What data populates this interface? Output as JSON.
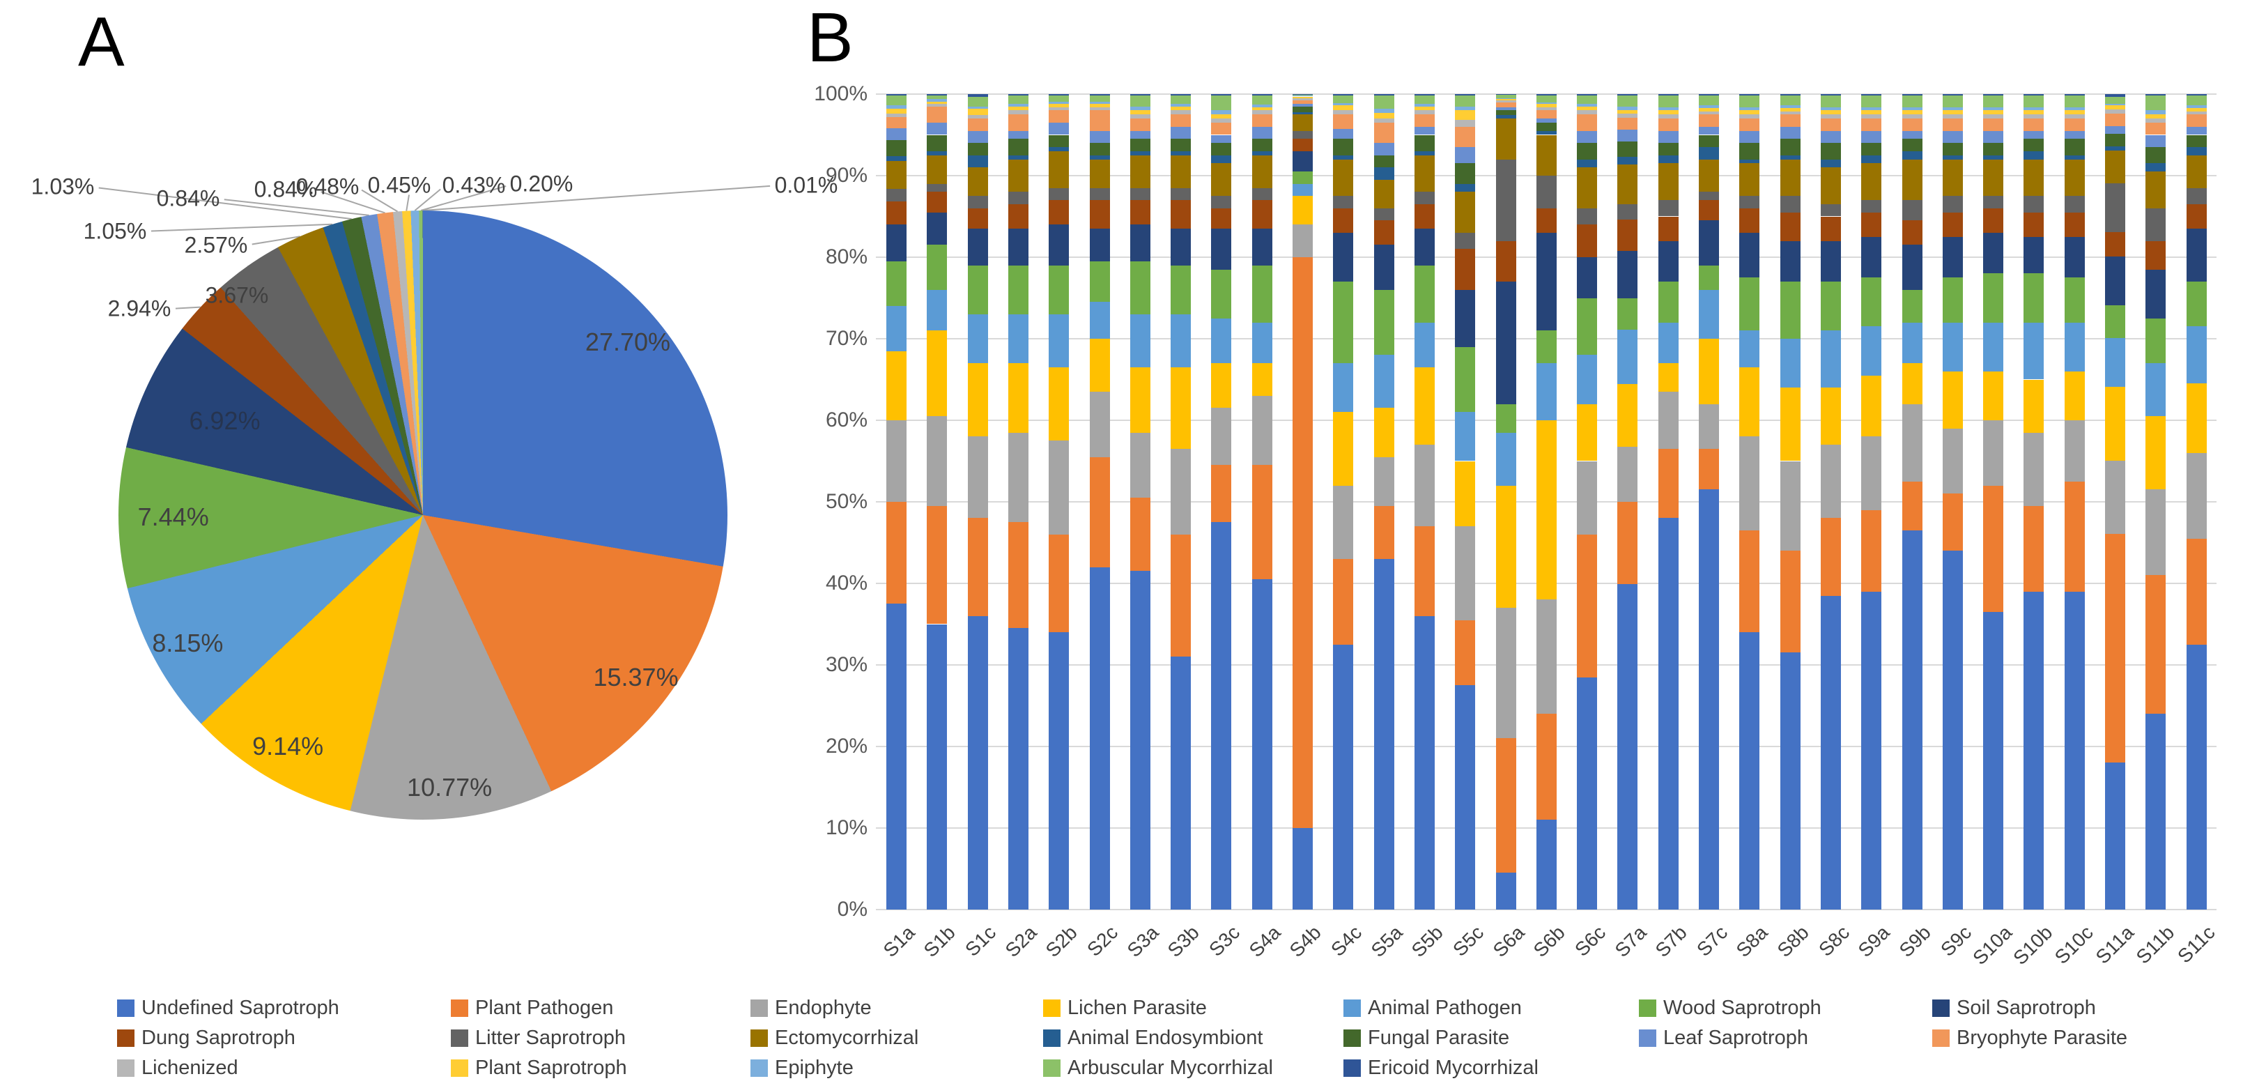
{
  "figure": {
    "panel_a_label": "A",
    "panel_b_label": "B"
  },
  "palette": {
    "label_text": "#404040",
    "axis_text": "#595959",
    "gridline": "#d9d9d9",
    "leader_line": "#a6a6a6"
  },
  "legend": {
    "entries": [
      "Undefined Saprotroph",
      "Plant Pathogen",
      "Endophyte",
      "Lichen Parasite",
      "Animal Pathogen",
      "Wood Saprotroph",
      "Soil Saprotroph",
      "Dung Saprotroph",
      "Litter Saprotroph",
      "Ectomycorrhizal",
      "Animal Endosymbiont",
      "Fungal Parasite",
      "Leaf Saprotroph",
      "Bryophyte Parasite",
      "Lichenized",
      "Plant Saprotroph",
      "Epiphyte",
      "Arbuscular Mycorrhizal",
      "Ericoid Mycorrhizal"
    ]
  },
  "chart_data": [
    {
      "type": "pie",
      "panel": "A",
      "legend_position": "shared-bottom",
      "slices": [
        {
          "name": "Undefined Saprotroph",
          "value": 27.7,
          "label": "27.70%",
          "color": "#4472C4",
          "label_placement": "inside"
        },
        {
          "name": "Plant Pathogen",
          "value": 15.37,
          "label": "15.37%",
          "color": "#ED7D31",
          "label_placement": "inside"
        },
        {
          "name": "Endophyte",
          "value": 10.77,
          "label": "10.77%",
          "color": "#A5A5A5",
          "label_placement": "inside"
        },
        {
          "name": "Lichen Parasite",
          "value": 9.14,
          "label": "9.14%",
          "color": "#FFC000",
          "label_placement": "inside"
        },
        {
          "name": "Animal Pathogen",
          "value": 8.15,
          "label": "8.15%",
          "color": "#5B9BD5",
          "label_placement": "inside"
        },
        {
          "name": "Wood Saprotroph",
          "value": 7.44,
          "label": "7.44%",
          "color": "#70AD47",
          "label_placement": "inside"
        },
        {
          "name": "Soil Saprotroph",
          "value": 6.92,
          "label": "6.92%",
          "color": "#264478",
          "label_placement": "inside-dim"
        },
        {
          "name": "Dung Saprotroph",
          "value": 2.94,
          "label": "2.94%",
          "color": "#9E480E",
          "label_placement": "outside",
          "label_xy": [
            200,
            443
          ]
        },
        {
          "name": "Litter Saprotroph",
          "value": 3.67,
          "label": "3.67%",
          "color": "#636363",
          "label_placement": "outside",
          "label_xy": [
            340,
            424
          ]
        },
        {
          "name": "Ectomycorrhizal",
          "value": 2.57,
          "label": "2.57%",
          "color": "#997300",
          "label_placement": "outside",
          "label_xy": [
            310,
            352
          ]
        },
        {
          "name": "Animal Endosymbiont",
          "value": 1.05,
          "label": "1.05%",
          "color": "#255E91",
          "label_placement": "outside",
          "label_xy": [
            165,
            332
          ]
        },
        {
          "name": "Fungal Parasite",
          "value": 1.03,
          "label": "1.03%",
          "color": "#43682B",
          "label_placement": "outside",
          "label_xy": [
            90,
            268
          ]
        },
        {
          "name": "Leaf Saprotroph",
          "value": 0.84,
          "label": "0.84%",
          "color": "#698ED0",
          "label_placement": "outside",
          "label_xy": [
            270,
            285
          ]
        },
        {
          "name": "Bryophyte Parasite",
          "value": 0.84,
          "label": "0.84%",
          "color": "#F1975A",
          "label_placement": "outside",
          "label_xy": [
            410,
            272
          ]
        },
        {
          "name": "Lichenized",
          "value": 0.48,
          "label": "0.48%",
          "color": "#B7B7B7",
          "label_placement": "outside",
          "label_xy": [
            470,
            268
          ]
        },
        {
          "name": "Plant Saprotroph",
          "value": 0.45,
          "label": "0.45%",
          "color": "#FFCD33",
          "label_placement": "outside",
          "label_xy": [
            573,
            266
          ]
        },
        {
          "name": "Epiphyte",
          "value": 0.43,
          "label": "0.43%",
          "color": "#7CAFDD",
          "label_placement": "outside",
          "label_xy": [
            680,
            266
          ]
        },
        {
          "name": "Arbuscular Mycorrhizal",
          "value": 0.2,
          "label": "0.20%",
          "color": "#8CC168",
          "label_placement": "outside",
          "label_xy": [
            777,
            264
          ]
        },
        {
          "name": "Ericoid Mycorrhizal",
          "value": 0.01,
          "label": "0.01%",
          "color": "#2F5597",
          "label_placement": "outside",
          "label_xy": [
            1157,
            266
          ]
        }
      ]
    },
    {
      "type": "bar",
      "panel": "B",
      "stacked": true,
      "units": "percent",
      "ylim": [
        0,
        100
      ],
      "grid": true,
      "y_ticks": [
        "0%",
        "10%",
        "20%",
        "30%",
        "40%",
        "50%",
        "60%",
        "70%",
        "80%",
        "90%",
        "100%"
      ],
      "categories": [
        "S1a",
        "S1b",
        "S1c",
        "S2a",
        "S2b",
        "S2c",
        "S3a",
        "S3b",
        "S3c",
        "S4a",
        "S4b",
        "S4c",
        "S5a",
        "S5b",
        "S5c",
        "S6a",
        "S6b",
        "S6c",
        "S7a",
        "S7b",
        "S7c",
        "S8a",
        "S8b",
        "S8c",
        "S9a",
        "S9b",
        "S9c",
        "S10a",
        "S10b",
        "S10c",
        "S11a",
        "S11b",
        "S11c"
      ],
      "series": [
        {
          "name": "Undefined Saprotroph",
          "color": "#4472C4"
        },
        {
          "name": "Plant Pathogen",
          "color": "#ED7D31"
        },
        {
          "name": "Endophyte",
          "color": "#A5A5A5"
        },
        {
          "name": "Lichen Parasite",
          "color": "#FFC000"
        },
        {
          "name": "Animal Pathogen",
          "color": "#5B9BD5"
        },
        {
          "name": "Wood Saprotroph",
          "color": "#70AD47"
        },
        {
          "name": "Soil Saprotroph",
          "color": "#264478"
        },
        {
          "name": "Dung Saprotroph",
          "color": "#9E480E"
        },
        {
          "name": "Litter Saprotroph",
          "color": "#636363"
        },
        {
          "name": "Ectomycorrhizal",
          "color": "#997300"
        },
        {
          "name": "Animal Endosymbiont",
          "color": "#255E91"
        },
        {
          "name": "Fungal Parasite",
          "color": "#43682B"
        },
        {
          "name": "Leaf Saprotroph",
          "color": "#698ED0"
        },
        {
          "name": "Bryophyte Parasite",
          "color": "#F1975A"
        },
        {
          "name": "Lichenized",
          "color": "#B7B7B7"
        },
        {
          "name": "Plant Saprotroph",
          "color": "#FFCD33"
        },
        {
          "name": "Epiphyte",
          "color": "#7CAFDD"
        },
        {
          "name": "Arbuscular Mycorrhizal",
          "color": "#8CC168"
        },
        {
          "name": "Ericoid Mycorrhizal",
          "color": "#2F5597"
        }
      ],
      "values_by_category": [
        [
          37.5,
          12.5,
          10,
          8.5,
          5.5,
          5.5,
          4.5,
          2.8,
          1.6,
          3.4,
          0.6,
          2.0,
          1.4,
          1.4,
          0.4,
          0.6,
          0.4,
          1.2,
          0.2
        ],
        [
          35,
          14.5,
          11,
          10.5,
          5,
          5.5,
          4,
          2.5,
          1,
          3.5,
          0.5,
          2,
          1.5,
          2,
          0.3,
          0.3,
          0.3,
          0.4,
          0.2
        ],
        [
          36,
          12,
          10,
          9,
          6,
          6,
          4.5,
          2.5,
          1.5,
          3.5,
          1.5,
          1.5,
          1.5,
          1.5,
          0.4,
          0.8,
          0.3,
          1.2,
          0.3
        ],
        [
          34.5,
          13,
          11,
          8.5,
          6,
          6,
          4.5,
          3,
          1.5,
          4,
          0.5,
          2,
          1,
          2,
          0.5,
          0.5,
          0.3,
          1,
          0.2
        ],
        [
          34,
          12,
          11.5,
          9,
          6.5,
          6,
          5,
          3,
          1.5,
          4.5,
          0.5,
          1.5,
          1.5,
          1.5,
          0.4,
          0.4,
          0.3,
          0.7,
          0.2
        ],
        [
          42,
          13.5,
          8,
          6.5,
          4.5,
          5,
          4,
          3.5,
          1.5,
          3.5,
          0.5,
          1.5,
          1.5,
          2.5,
          0.4,
          0.4,
          0.3,
          0.7,
          0.2
        ],
        [
          41.5,
          9,
          8,
          8,
          6.5,
          6.5,
          4.5,
          3,
          1.5,
          4,
          0.5,
          1.5,
          1,
          1.5,
          0.5,
          0.5,
          0.5,
          1.3,
          0.2
        ],
        [
          31,
          15,
          10.5,
          10,
          6.5,
          6,
          4.5,
          3.5,
          1.5,
          4,
          0.5,
          1.5,
          1.5,
          1.5,
          0.5,
          0.5,
          0.3,
          1,
          0.2
        ],
        [
          47.5,
          7,
          7,
          5.5,
          5.5,
          6,
          5,
          2.5,
          1.5,
          4,
          1,
          1.5,
          1,
          1.5,
          0.5,
          0.5,
          0.5,
          1.8,
          0.2
        ],
        [
          40.5,
          14,
          8.5,
          4,
          5,
          7,
          4.5,
          3.5,
          1.5,
          4,
          0.5,
          1.5,
          1.5,
          1.5,
          0.5,
          0.4,
          0.3,
          1.1,
          0.2
        ],
        [
          10,
          70,
          4,
          3.5,
          1.5,
          1.5,
          2.5,
          1.5,
          1,
          2,
          0.3,
          0.7,
          0.3,
          0.4,
          0.3,
          0.2,
          0.1,
          0.1,
          0.1
        ],
        [
          32.5,
          10.5,
          9,
          9,
          6,
          10,
          6,
          3,
          1.5,
          4.5,
          0.5,
          2,
          1.2,
          1.8,
          0.5,
          0.6,
          0.3,
          0.9,
          0.2
        ],
        [
          43,
          6.5,
          6,
          6,
          6.5,
          8,
          5.5,
          3,
          1.5,
          3.5,
          1.5,
          1.5,
          1.5,
          2.5,
          0.5,
          0.7,
          0.5,
          1.6,
          0.2
        ],
        [
          36,
          11,
          10,
          9.5,
          5.5,
          7,
          4.5,
          3,
          1.5,
          4.5,
          0.5,
          2,
          1,
          1.5,
          0.5,
          0.5,
          0.3,
          1,
          0.2
        ],
        [
          27.5,
          8,
          11.5,
          8,
          6,
          8,
          7,
          5,
          2,
          5,
          1,
          2.5,
          2,
          2.5,
          0.8,
          1.2,
          0.5,
          1.3,
          0.2
        ],
        [
          4.5,
          16.5,
          16,
          15,
          6.5,
          3.5,
          15,
          5,
          10,
          5,
          0.4,
          0.6,
          0.4,
          0.6,
          0.2,
          0.2,
          0.1,
          0.4,
          0.1
        ],
        [
          11,
          13,
          14,
          22,
          7,
          4,
          12,
          3,
          4,
          5,
          0.5,
          1,
          0.5,
          1,
          0.4,
          0.4,
          0.2,
          0.8,
          0.2
        ],
        [
          28.5,
          17.5,
          9,
          7,
          6,
          7,
          5,
          4,
          2,
          5,
          1,
          2,
          1.5,
          2,
          0.5,
          0.5,
          0.3,
          1,
          0.2
        ],
        [
          41.5,
          10.5,
          7,
          8,
          7,
          4,
          6,
          4,
          2,
          5,
          1,
          2,
          1.5,
          1.5,
          0.5,
          0.5,
          0.4,
          1.4,
          0.2
        ],
        [
          48,
          8.5,
          7,
          3.5,
          5,
          5,
          5,
          3,
          2,
          4.5,
          1,
          1.5,
          1.5,
          1.5,
          0.5,
          0.5,
          0.4,
          1.4,
          0.2
        ],
        [
          51.5,
          5,
          5.5,
          8,
          6,
          3,
          5.5,
          2.5,
          1,
          4,
          1.5,
          1.5,
          1,
          1.5,
          0.4,
          0.4,
          0.3,
          1.2,
          0.2
        ],
        [
          34,
          12.5,
          11.5,
          8.5,
          4.5,
          6.5,
          5.5,
          3,
          1.5,
          4,
          0.5,
          2,
          1.5,
          1.5,
          0.5,
          0.5,
          0.4,
          1.4,
          0.2
        ],
        [
          31.5,
          12.5,
          11,
          9,
          6,
          7,
          5,
          3.5,
          2,
          4.5,
          0.5,
          2,
          1.5,
          1.5,
          0.4,
          0.4,
          0.3,
          1.2,
          0.2
        ],
        [
          38.5,
          9.5,
          9,
          7,
          7,
          6,
          5,
          3,
          1.5,
          4.5,
          1,
          2,
          1.5,
          1.5,
          0.5,
          0.5,
          0.4,
          1.4,
          0.2
        ],
        [
          39,
          10,
          9,
          7.5,
          6,
          6,
          5,
          3,
          1.5,
          4.5,
          1,
          1.5,
          1.5,
          1.5,
          0.5,
          0.5,
          0.4,
          1.4,
          0.2
        ],
        [
          46.5,
          6,
          9.5,
          5,
          5,
          4,
          5.5,
          3,
          2.5,
          5,
          1,
          1.5,
          1,
          1.5,
          0.5,
          0.5,
          0.4,
          1.4,
          0.2
        ],
        [
          44,
          7,
          8,
          7,
          6,
          5.5,
          5,
          3,
          2,
          4.5,
          0.5,
          1.5,
          1.5,
          1.5,
          0.5,
          0.5,
          0.4,
          1.4,
          0.2
        ],
        [
          36.5,
          15.5,
          8,
          6,
          6,
          6,
          5,
          3,
          1.5,
          4.5,
          0.5,
          1.5,
          1.5,
          1.5,
          0.5,
          0.5,
          0.4,
          1.4,
          0.2
        ],
        [
          39,
          10.5,
          9,
          6.5,
          7,
          6,
          4.5,
          3,
          2,
          4.5,
          1,
          1.5,
          1,
          1.5,
          0.5,
          0.5,
          0.4,
          1.4,
          0.2
        ],
        [
          39,
          13.5,
          7.5,
          6,
          6,
          5.5,
          5,
          3,
          2,
          4.5,
          0.5,
          2,
          1,
          1.5,
          0.5,
          0.5,
          0.4,
          1.4,
          0.2
        ],
        [
          18,
          28,
          9,
          9,
          6,
          4,
          6,
          3,
          6,
          4,
          0.5,
          1.5,
          1,
          1.5,
          0.5,
          0.5,
          0.2,
          0.9,
          0.3
        ],
        [
          24,
          17,
          10.5,
          9,
          6.5,
          5.5,
          6,
          3.5,
          4,
          4.5,
          1,
          2,
          1.5,
          1.5,
          0.5,
          0.5,
          0.5,
          1.8,
          0.2
        ],
        [
          32.5,
          13,
          10.5,
          8.5,
          7,
          5.5,
          6.5,
          3,
          2,
          4,
          1,
          1.5,
          1,
          1.5,
          0.4,
          0.4,
          0.3,
          1.2,
          0.2
        ]
      ]
    }
  ]
}
